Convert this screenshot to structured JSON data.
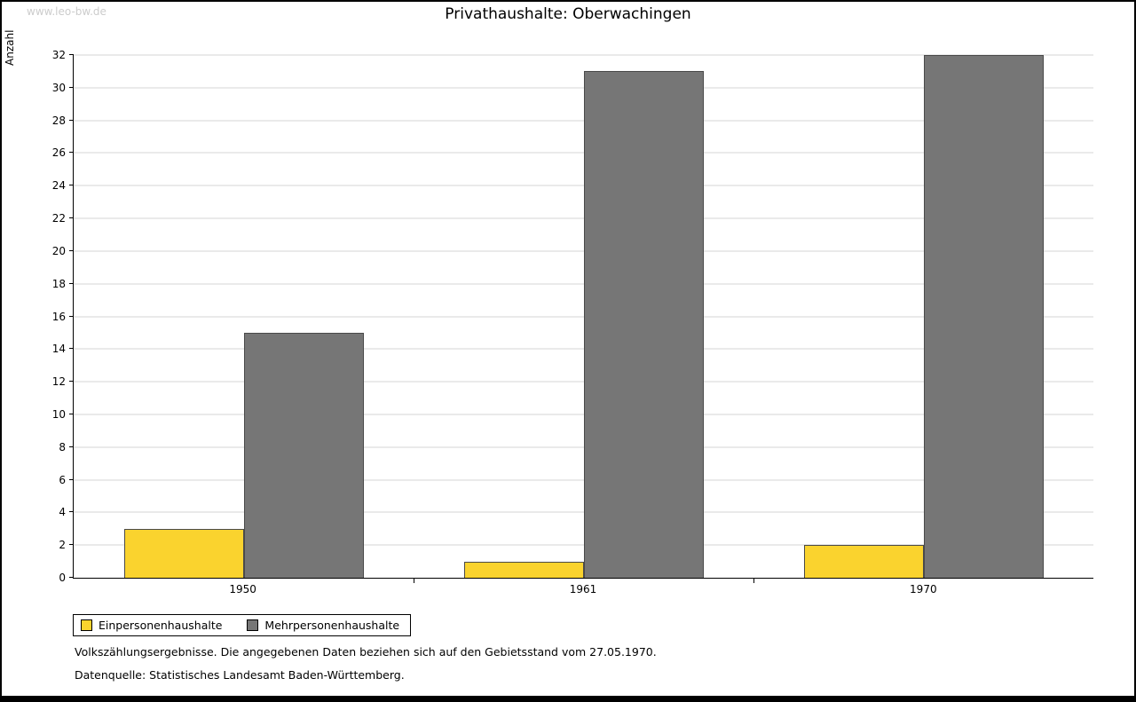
{
  "page": {
    "watermark": "www.leo-bw.de"
  },
  "chart_data": {
    "type": "bar",
    "title": "Privathaushalte: Oberwachingen",
    "xlabel": "",
    "ylabel": "Anzahl",
    "categories": [
      "1950",
      "1961",
      "1970"
    ],
    "series": [
      {
        "name": "Einpersonenhaushalte",
        "color": "#FAD32E",
        "values": [
          3,
          1,
          2
        ]
      },
      {
        "name": "Mehrpersonenhaushalte",
        "color": "#767676",
        "values": [
          15,
          31,
          32
        ]
      }
    ],
    "ylim": [
      0,
      32
    ],
    "ytick_step": 2,
    "grid": true,
    "legend_position": "bottom-left"
  },
  "footnotes": {
    "line1": "Volkszählungsergebnisse. Die angegebenen Daten beziehen sich auf den Gebietsstand vom 27.05.1970.",
    "line2": "Datenquelle: Statistisches Landesamt Baden-Württemberg."
  }
}
